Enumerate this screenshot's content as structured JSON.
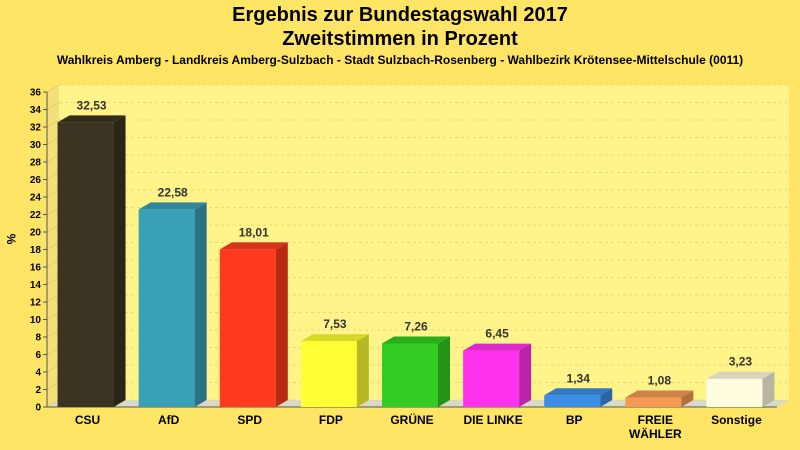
{
  "chart_data": {
    "type": "bar",
    "title_line1": "Ergebnis zur Bundestagswahl 2017",
    "title_line2": "Zweitstimmen in Prozent",
    "subtitle": "Wahlkreis Amberg - Landkreis Amberg-Sulzbach - Stadt Sulzbach-Rosenberg - Wahlbezirk Krötensee-Mittelschule (0011)",
    "ylabel": "%",
    "xlabel": "",
    "ylim": [
      0,
      36
    ],
    "yticks": [
      0,
      2,
      4,
      6,
      8,
      10,
      12,
      14,
      16,
      18,
      20,
      22,
      24,
      26,
      28,
      30,
      32,
      34,
      36
    ],
    "grid": true,
    "categories": [
      "CSU",
      "AfD",
      "SPD",
      "FDP",
      "GRÜNE",
      "DIE LINKE",
      "BP",
      "FREIE WÄHLER",
      "Sonstige"
    ],
    "category_lines": [
      [
        "CSU"
      ],
      [
        "AfD"
      ],
      [
        "SPD"
      ],
      [
        "FDP"
      ],
      [
        "GRÜNE"
      ],
      [
        "DIE LINKE"
      ],
      [
        "BP"
      ],
      [
        "FREIE",
        "WÄHLER"
      ],
      [
        "Sonstige"
      ]
    ],
    "values": [
      32.53,
      22.58,
      18.01,
      7.53,
      7.26,
      6.45,
      1.34,
      1.08,
      3.23
    ],
    "value_labels": [
      "32,53",
      "22,58",
      "18,01",
      "7,53",
      "7,26",
      "6,45",
      "1,34",
      "1,08",
      "3,23"
    ],
    "colors": [
      "#3b3422",
      "#3aa0b8",
      "#ff3b1f",
      "#ffff33",
      "#33cc22",
      "#ff33ee",
      "#3a8ee6",
      "#f59a55",
      "#fffce0"
    ]
  }
}
